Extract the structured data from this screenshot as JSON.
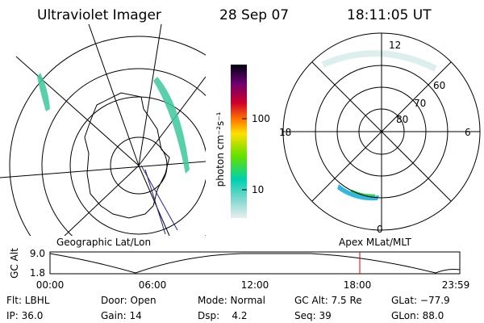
{
  "header": {
    "title": "Ultraviolet Imager",
    "date": "28 Sep 07",
    "time": "18:11:05 UT"
  },
  "colorbar": {
    "label": "photon cm⁻²s⁻¹",
    "ticks": [
      "100",
      "10"
    ]
  },
  "polar": {
    "mlt_labels": [
      "12",
      "18",
      "6",
      "0"
    ],
    "lat_labels": [
      "60",
      "70",
      "80"
    ]
  },
  "panels": {
    "left": "Geographic Lat/Lon",
    "right": "Apex MLat/MLT"
  },
  "timeline": {
    "label": "GC Alt",
    "y_labels": [
      "9.0",
      "1.8"
    ],
    "x_labels": [
      "00:00",
      "06:00",
      "12:00",
      "18:00",
      "23:59"
    ]
  },
  "footer": [
    [
      "Flt: LBHL",
      "IP: 36.0"
    ],
    [
      "Door: Open",
      "Gain: 14"
    ],
    [
      "Mode: Normal",
      "Dsp:    4.2"
    ],
    [
      "GC Alt: 7.5 Re",
      "Seq: 39"
    ],
    [
      "GLat: −77.9",
      "GLon: 88.0"
    ]
  ]
}
